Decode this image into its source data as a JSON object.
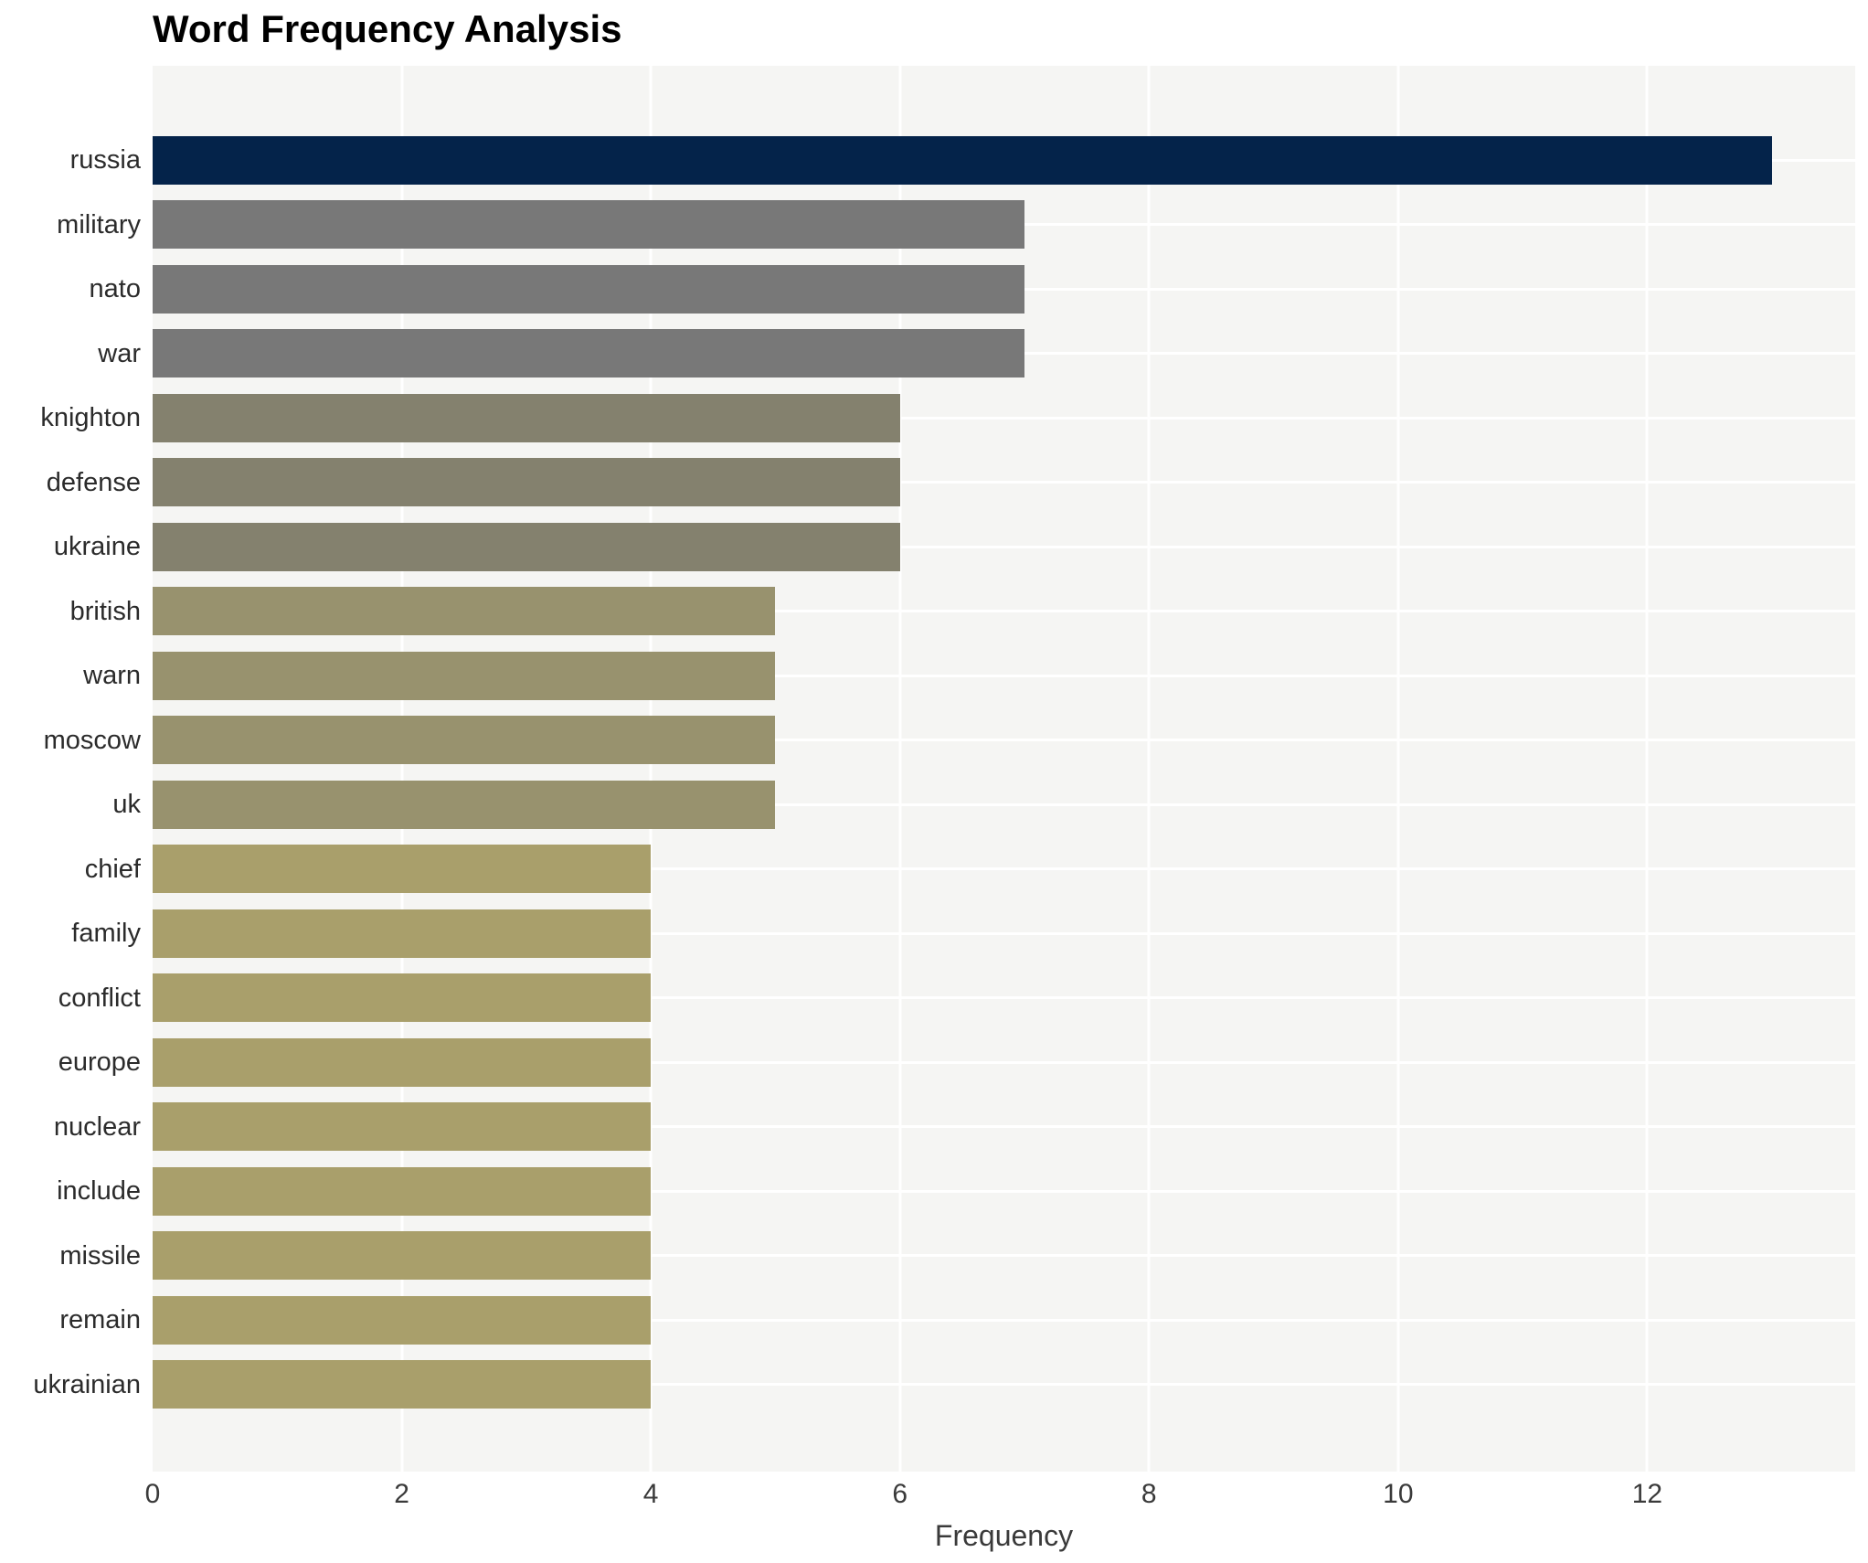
{
  "chart_data": {
    "type": "bar",
    "orientation": "horizontal",
    "title": "Word Frequency Analysis",
    "xlabel": "Frequency",
    "ylabel": "",
    "categories": [
      "russia",
      "military",
      "nato",
      "war",
      "knighton",
      "defense",
      "ukraine",
      "british",
      "warn",
      "moscow",
      "uk",
      "chief",
      "family",
      "conflict",
      "europe",
      "nuclear",
      "include",
      "missile",
      "remain",
      "ukrainian"
    ],
    "values": [
      13,
      7,
      7,
      7,
      6,
      6,
      6,
      5,
      5,
      5,
      5,
      4,
      4,
      4,
      4,
      4,
      4,
      4,
      4,
      4
    ],
    "bar_colors": [
      "#04234a",
      "#787878",
      "#787878",
      "#787878",
      "#84816e",
      "#84816e",
      "#84816e",
      "#98926e",
      "#98926e",
      "#98926e",
      "#98926e",
      "#a99f6b",
      "#a99f6b",
      "#a99f6b",
      "#a99f6b",
      "#a99f6b",
      "#a99f6b",
      "#a99f6b",
      "#a99f6b",
      "#a99f6b"
    ],
    "x_ticks": [
      0,
      2,
      4,
      6,
      8,
      10,
      12
    ],
    "xlim": [
      0,
      13.67
    ],
    "grid": "white gridlines on light gray panel; vertical at major x ticks, horizontal at category centers",
    "legend": "none"
  },
  "style_colors": {
    "figure_bg": "#ffffff",
    "plot_bg": "#f5f5f3",
    "gridline": "#ffffff",
    "title_text": "#000000",
    "tick_text": "#3a3a3a",
    "category_text": "#2b2b2b"
  }
}
